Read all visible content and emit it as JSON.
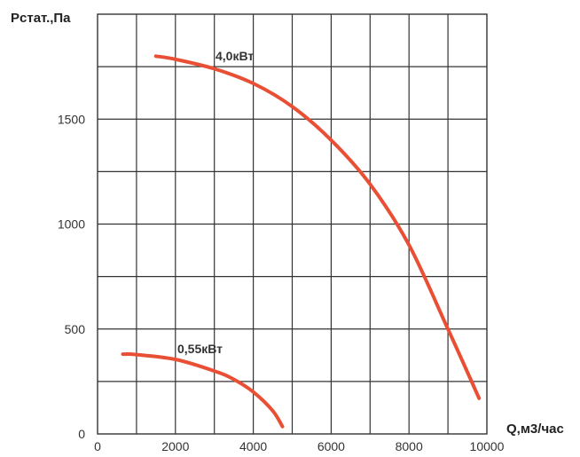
{
  "chart_data": {
    "type": "line",
    "ylabel": "Рстат.,Па",
    "xlabel": "Q,м3/час",
    "xlim": [
      0,
      10000
    ],
    "ylim": [
      0,
      2000
    ],
    "x_ticks": [
      0,
      2000,
      4000,
      6000,
      8000,
      10000
    ],
    "y_ticks": [
      0,
      500,
      1000,
      1500
    ],
    "x_grid_step": 1000,
    "y_grid_step": 250,
    "grid": true,
    "series": [
      {
        "name": "4,0кВт",
        "color": "#e94f35",
        "x": [
          1500,
          2000,
          3000,
          4000,
          5000,
          6000,
          7000,
          8000,
          9000,
          9800
        ],
        "y": [
          1800,
          1785,
          1740,
          1670,
          1560,
          1400,
          1190,
          900,
          500,
          170
        ]
      },
      {
        "name": "0,55кВт",
        "color": "#e94f35",
        "x": [
          650,
          1000,
          2000,
          3000,
          3500,
          4000,
          4500,
          4750
        ],
        "y": [
          380,
          378,
          355,
          300,
          260,
          200,
          110,
          35
        ]
      }
    ]
  }
}
